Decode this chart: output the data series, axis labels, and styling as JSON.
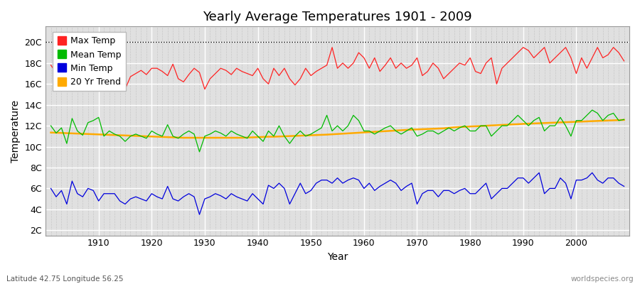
{
  "title": "Yearly Average Temperatures 1901 - 2009",
  "xlabel": "Year",
  "ylabel": "Temperature",
  "bottom_left": "Latitude 42.75 Longitude 56.25",
  "bottom_right": "worldspecies.org",
  "years_start": 1901,
  "years_end": 2009,
  "yticks": [
    2,
    4,
    6,
    8,
    10,
    12,
    14,
    16,
    18,
    20
  ],
  "ytick_labels": [
    "2C",
    "4C",
    "6C",
    "8C",
    "10C",
    "12C",
    "14C",
    "16C",
    "18C",
    "20C"
  ],
  "ylim": [
    1.5,
    21.5
  ],
  "xlim": [
    1900,
    2010
  ],
  "bg_color": "#e0e0e0",
  "fig_color": "#ffffff",
  "max_temp_color": "#ff2222",
  "mean_temp_color": "#00bb00",
  "min_temp_color": "#0000dd",
  "trend_color": "#ffaa00",
  "legend_labels": [
    "Max Temp",
    "Mean Temp",
    "Min Temp",
    "20 Yr Trend"
  ],
  "max_temps": [
    17.8,
    17.1,
    16.5,
    15.9,
    18.6,
    16.2,
    17.4,
    18.5,
    18.2,
    19.0,
    16.5,
    17.5,
    16.8,
    16.2,
    15.5,
    16.7,
    17.0,
    17.3,
    16.9,
    17.5,
    17.5,
    17.2,
    16.8,
    17.9,
    16.5,
    16.2,
    16.9,
    17.5,
    17.1,
    15.5,
    16.5,
    17.0,
    17.5,
    17.3,
    16.9,
    17.5,
    17.2,
    17.0,
    16.8,
    17.5,
    16.5,
    16.0,
    17.5,
    16.8,
    17.5,
    16.5,
    15.9,
    16.5,
    17.5,
    16.8,
    17.2,
    17.5,
    17.8,
    19.5,
    17.5,
    18.0,
    17.5,
    18.0,
    19.0,
    18.5,
    17.5,
    18.5,
    17.2,
    17.8,
    18.5,
    17.5,
    18.0,
    17.5,
    17.8,
    18.5,
    16.8,
    17.2,
    18.0,
    17.5,
    16.5,
    17.0,
    17.5,
    18.0,
    17.8,
    18.5,
    17.2,
    17.0,
    18.0,
    18.5,
    16.0,
    17.5,
    18.0,
    18.5,
    19.0,
    19.5,
    19.2,
    18.5,
    19.0,
    19.5,
    18.0,
    18.5,
    19.0,
    19.5,
    18.5,
    17.0,
    18.5,
    17.5,
    18.5,
    19.5,
    18.5,
    18.8,
    19.5,
    19.0,
    18.2
  ],
  "mean_temps": [
    12.0,
    11.3,
    11.8,
    10.3,
    12.7,
    11.5,
    11.1,
    12.3,
    12.5,
    12.8,
    11.0,
    11.5,
    11.2,
    11.0,
    10.5,
    11.0,
    11.2,
    11.0,
    10.8,
    11.5,
    11.2,
    11.0,
    12.1,
    11.0,
    10.8,
    11.2,
    11.5,
    11.2,
    9.5,
    11.0,
    11.2,
    11.5,
    11.3,
    11.0,
    11.5,
    11.2,
    11.0,
    10.8,
    11.5,
    11.0,
    10.5,
    11.5,
    11.0,
    12.0,
    11.0,
    10.3,
    11.0,
    11.5,
    11.0,
    11.2,
    11.5,
    11.8,
    13.0,
    11.5,
    12.0,
    11.5,
    12.0,
    13.0,
    12.5,
    11.5,
    11.5,
    11.2,
    11.5,
    11.8,
    12.0,
    11.5,
    11.2,
    11.5,
    11.8,
    11.0,
    11.2,
    11.5,
    11.5,
    11.2,
    11.5,
    11.8,
    11.5,
    11.8,
    12.0,
    11.5,
    11.5,
    12.0,
    12.0,
    11.0,
    11.5,
    12.0,
    12.0,
    12.5,
    13.0,
    12.5,
    12.0,
    12.5,
    12.8,
    11.5,
    12.0,
    12.0,
    12.8,
    12.0,
    11.0,
    12.5,
    12.5,
    13.0,
    13.5,
    13.2,
    12.5,
    13.0,
    13.2,
    12.5,
    12.6
  ],
  "min_temps": [
    6.0,
    5.2,
    5.8,
    4.5,
    6.7,
    5.5,
    5.2,
    6.0,
    5.8,
    4.8,
    5.5,
    5.5,
    5.5,
    4.8,
    4.5,
    5.0,
    5.2,
    5.0,
    4.8,
    5.5,
    5.2,
    5.0,
    6.2,
    5.0,
    4.8,
    5.2,
    5.5,
    5.2,
    3.5,
    5.0,
    5.2,
    5.5,
    5.3,
    5.0,
    5.5,
    5.2,
    5.0,
    4.8,
    5.5,
    5.0,
    4.5,
    6.3,
    6.0,
    6.5,
    6.0,
    4.5,
    5.5,
    6.5,
    5.5,
    5.8,
    6.5,
    6.8,
    6.8,
    6.5,
    7.0,
    6.5,
    6.8,
    7.0,
    6.8,
    6.0,
    6.5,
    5.8,
    6.2,
    6.5,
    6.8,
    6.5,
    5.8,
    6.2,
    6.5,
    4.5,
    5.5,
    5.8,
    5.8,
    5.2,
    5.8,
    5.8,
    5.5,
    5.8,
    6.0,
    5.5,
    5.5,
    6.0,
    6.5,
    5.0,
    5.5,
    6.0,
    6.0,
    6.5,
    7.0,
    7.0,
    6.5,
    7.0,
    7.5,
    5.5,
    6.0,
    6.0,
    7.0,
    6.5,
    5.0,
    6.8,
    6.8,
    7.0,
    7.5,
    6.8,
    6.5,
    7.0,
    7.0,
    6.5,
    6.2
  ],
  "trend_temps": [
    11.35,
    11.33,
    11.31,
    11.29,
    11.27,
    11.25,
    11.23,
    11.21,
    11.19,
    11.17,
    11.15,
    11.13,
    11.11,
    11.09,
    11.07,
    11.05,
    11.03,
    11.01,
    10.99,
    10.97,
    10.95,
    10.93,
    10.91,
    10.89,
    10.87,
    10.85,
    10.85,
    10.85,
    10.85,
    10.85,
    10.85,
    10.85,
    10.85,
    10.85,
    10.85,
    10.85,
    10.85,
    10.87,
    10.89,
    10.91,
    10.93,
    10.95,
    10.95,
    10.97,
    10.99,
    11.01,
    11.03,
    11.05,
    11.07,
    11.09,
    11.11,
    11.13,
    11.15,
    11.18,
    11.21,
    11.24,
    11.27,
    11.3,
    11.33,
    11.36,
    11.39,
    11.42,
    11.45,
    11.48,
    11.51,
    11.54,
    11.57,
    11.6,
    11.63,
    11.65,
    11.67,
    11.69,
    11.71,
    11.73,
    11.75,
    11.8,
    11.85,
    11.88,
    11.9,
    11.93,
    11.95,
    11.97,
    12.0,
    12.03,
    12.05,
    12.08,
    12.1,
    12.13,
    12.15,
    12.18,
    12.2,
    12.22,
    12.24,
    12.26,
    12.28,
    12.3,
    12.32,
    12.34,
    12.36,
    12.38,
    12.4,
    12.42,
    12.44,
    12.46,
    12.48,
    12.5,
    12.52,
    12.54,
    12.56
  ]
}
